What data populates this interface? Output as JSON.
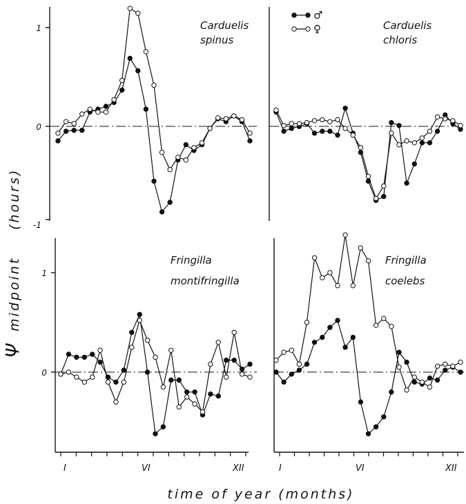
{
  "figure": {
    "ylabel": "(hours)",
    "ylabel_symbol": "Ψ",
    "ylabel_word": "midpoint",
    "xlabel": "time of year (months)",
    "legend": [
      {
        "symbol": "filled-circle",
        "label": "♂"
      },
      {
        "symbol": "open-circle",
        "label": "♀"
      }
    ],
    "x_ticks": [
      "I",
      "VI",
      "XII"
    ],
    "y_ticks_top": [
      "1",
      "0",
      "-1"
    ],
    "y_ticks_bottom": [
      "1",
      "0"
    ]
  },
  "chart_data": [
    {
      "type": "line",
      "title": [
        "Carduelis",
        "spinus"
      ],
      "xlim": [
        0,
        48
      ],
      "ylim": [
        -1,
        1.2
      ],
      "series": [
        {
          "name": "♂",
          "marker": "filled",
          "x": [
            0,
            2,
            4,
            6,
            8,
            10,
            12,
            14,
            16,
            18,
            20,
            22,
            24,
            26,
            28,
            30,
            32,
            34,
            36,
            38,
            40,
            42,
            44,
            46,
            48
          ],
          "y": [
            -0.18,
            -0.08,
            -0.07,
            -0.07,
            0.12,
            0.15,
            0.18,
            0.22,
            0.35,
            0.68,
            0.55,
            0.15,
            -0.6,
            -0.92,
            -0.82,
            -0.38,
            -0.22,
            -0.28,
            -0.22,
            -0.05,
            0.05,
            0.02,
            0.08,
            0.02,
            -0.18
          ]
        },
        {
          "name": "♀",
          "marker": "open",
          "x": [
            0,
            2,
            4,
            6,
            8,
            10,
            12,
            14,
            16,
            18,
            20,
            22,
            24,
            26,
            28,
            30,
            32,
            34,
            36,
            38,
            40,
            42,
            44,
            46,
            48
          ],
          "y": [
            -0.1,
            0.02,
            0.0,
            0.1,
            0.15,
            0.12,
            0.12,
            0.25,
            0.45,
            1.2,
            1.15,
            0.75,
            0.4,
            -0.3,
            -0.48,
            -0.35,
            -0.38,
            -0.25,
            -0.2,
            -0.05,
            0.06,
            0.05,
            0.08,
            0.04,
            -0.1
          ]
        }
      ]
    },
    {
      "type": "line",
      "title": [
        "Carduelis",
        "chloris"
      ],
      "xlim": [
        0,
        48
      ],
      "ylim": [
        -1,
        1.2
      ],
      "series": [
        {
          "name": "♂",
          "marker": "filled",
          "x": [
            0,
            2,
            4,
            6,
            8,
            10,
            12,
            14,
            16,
            18,
            20,
            22,
            24,
            26,
            28,
            30,
            32,
            34,
            36,
            38,
            40,
            42,
            44,
            46,
            48
          ],
          "y": [
            0.12,
            -0.08,
            -0.05,
            -0.03,
            0.0,
            -0.1,
            -0.08,
            -0.08,
            -0.12,
            0.16,
            -0.1,
            -0.3,
            -0.6,
            -0.8,
            -0.76,
            0.01,
            -0.02,
            -0.62,
            -0.42,
            -0.2,
            -0.2,
            -0.08,
            0.09,
            0.0,
            -0.06
          ]
        },
        {
          "name": "♀",
          "marker": "open",
          "x": [
            0,
            2,
            4,
            6,
            8,
            10,
            12,
            14,
            16,
            18,
            20,
            22,
            24,
            26,
            28,
            30,
            32,
            34,
            36,
            38,
            40,
            42,
            44,
            46,
            48
          ],
          "y": [
            0.14,
            -0.02,
            0.0,
            0.0,
            0.01,
            0.03,
            0.04,
            0.02,
            0.04,
            -0.05,
            -0.12,
            -0.25,
            -0.55,
            -0.78,
            -0.65,
            -0.1,
            -0.22,
            -0.18,
            -0.2,
            -0.15,
            -0.08,
            0.07,
            0.05,
            0.03,
            -0.02
          ]
        }
      ]
    },
    {
      "type": "line",
      "title": [
        "Fringilla",
        "montifringilla"
      ],
      "xlim": [
        0,
        48
      ],
      "ylim": [
        -0.8,
        1.35
      ],
      "series": [
        {
          "name": "♂",
          "marker": "filled",
          "x": [
            0,
            2,
            4,
            6,
            8,
            10,
            12,
            14,
            16,
            18,
            20,
            22,
            24,
            26,
            28,
            30,
            32,
            34,
            36,
            38,
            40,
            42,
            44,
            46,
            48
          ],
          "y": [
            -0.02,
            0.18,
            0.15,
            0.15,
            0.18,
            0.1,
            -0.05,
            -0.1,
            0.02,
            0.4,
            0.58,
            0.0,
            -0.62,
            -0.55,
            -0.08,
            -0.08,
            -0.2,
            -0.2,
            -0.43,
            -0.22,
            -0.24,
            0.12,
            0.12,
            0.03,
            0.08
          ]
        },
        {
          "name": "♀",
          "marker": "open",
          "x": [
            0,
            2,
            4,
            6,
            8,
            10,
            12,
            14,
            16,
            18,
            20,
            22,
            24,
            26,
            28,
            30,
            32,
            34,
            36,
            38,
            40,
            42,
            44,
            46,
            48
          ],
          "y": [
            -0.02,
            0.0,
            -0.05,
            -0.1,
            -0.05,
            0.22,
            -0.1,
            -0.3,
            -0.1,
            0.25,
            0.52,
            0.32,
            0.15,
            -0.15,
            0.22,
            -0.35,
            -0.25,
            -0.32,
            -0.4,
            0.08,
            0.3,
            -0.05,
            0.4,
            -0.02,
            -0.05
          ]
        }
      ]
    },
    {
      "type": "line",
      "title": [
        "Fringilla",
        "coelebs"
      ],
      "xlim": [
        0,
        48
      ],
      "ylim": [
        -0.8,
        1.35
      ],
      "series": [
        {
          "name": "♂",
          "marker": "filled",
          "x": [
            0,
            2,
            4,
            6,
            8,
            10,
            12,
            14,
            16,
            18,
            20,
            22,
            24,
            26,
            28,
            30,
            32,
            34,
            36,
            38,
            40,
            42,
            44,
            46,
            48
          ],
          "y": [
            0.0,
            -0.1,
            -0.02,
            0.02,
            0.08,
            0.3,
            0.35,
            0.45,
            0.52,
            0.25,
            0.35,
            -0.3,
            -0.62,
            -0.55,
            -0.45,
            -0.2,
            0.2,
            0.1,
            -0.1,
            -0.12,
            -0.06,
            -0.08,
            0.02,
            0.05,
            0.0
          ]
        },
        {
          "name": "♀",
          "marker": "open",
          "x": [
            0,
            2,
            4,
            6,
            8,
            10,
            12,
            14,
            16,
            18,
            20,
            22,
            24,
            26,
            28,
            30,
            32,
            34,
            36,
            38,
            40,
            42,
            44,
            46,
            48
          ],
          "y": [
            0.12,
            0.2,
            0.22,
            0.08,
            0.5,
            1.15,
            0.95,
            1.0,
            0.87,
            1.38,
            0.87,
            1.25,
            1.12,
            0.47,
            0.54,
            0.46,
            0.05,
            -0.18,
            -0.05,
            -0.1,
            -0.15,
            0.06,
            0.08,
            0.06,
            0.1
          ]
        }
      ]
    }
  ]
}
